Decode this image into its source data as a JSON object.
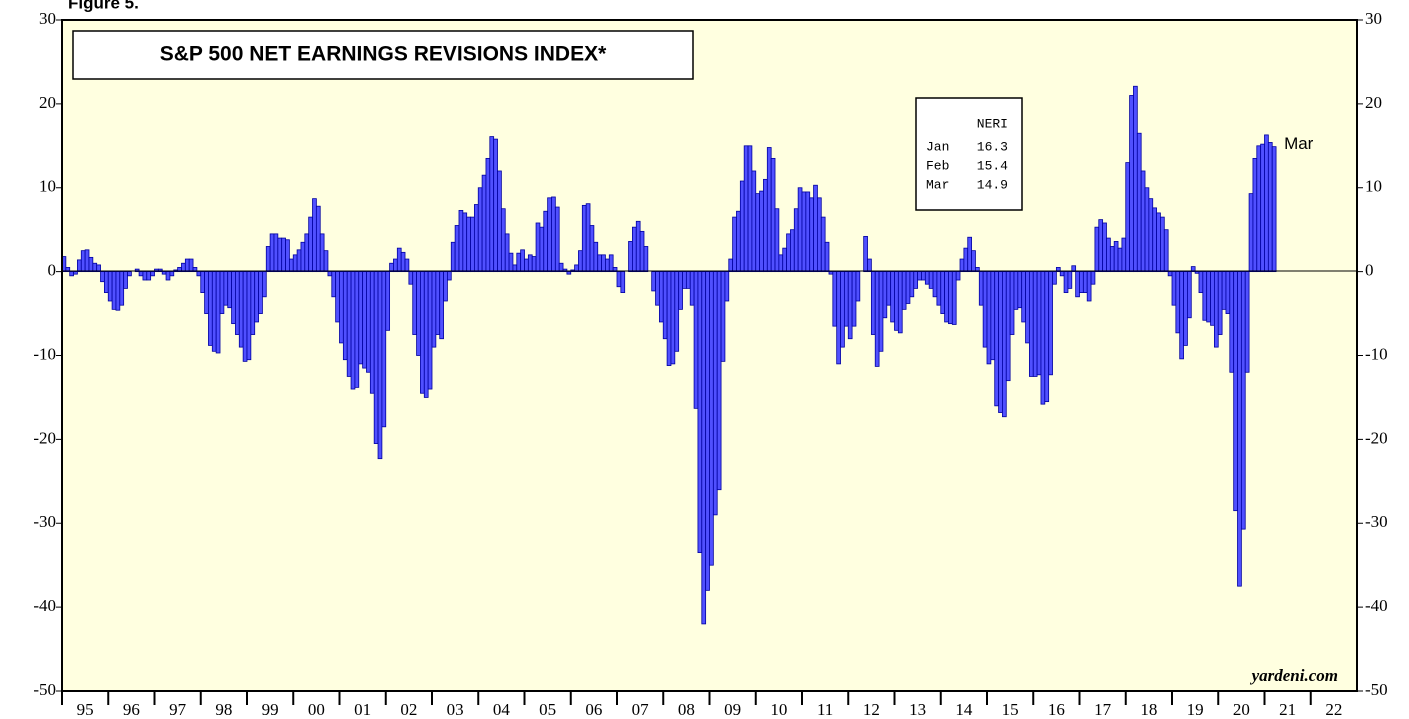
{
  "chart_data": {
    "type": "bar",
    "figure_label": "Figure 5.",
    "title": "S&P 500 NET EARNINGS REVISIONS INDEX*",
    "source": "yardeni.com",
    "end_label": "Mar",
    "table": {
      "header": "NERI",
      "rows": [
        [
          "Jan",
          "16.3"
        ],
        [
          "Feb",
          "15.4"
        ],
        [
          "Mar",
          "14.9"
        ]
      ]
    },
    "color": "#5050ff",
    "edge_color": "#0000a0",
    "background": "#ffffe0",
    "xlim": [
      1995,
      2023
    ],
    "ylim": [
      -50,
      30
    ],
    "yticks": [
      -50,
      -40,
      -30,
      -20,
      -10,
      0,
      10,
      20,
      30
    ],
    "xticks": [
      {
        "value": 1995,
        "label": "95"
      },
      {
        "value": 1996,
        "label": "96"
      },
      {
        "value": 1997,
        "label": "97"
      },
      {
        "value": 1998,
        "label": "98"
      },
      {
        "value": 1999,
        "label": "99"
      },
      {
        "value": 2000,
        "label": "00"
      },
      {
        "value": 2001,
        "label": "01"
      },
      {
        "value": 2002,
        "label": "02"
      },
      {
        "value": 2003,
        "label": "03"
      },
      {
        "value": 2004,
        "label": "04"
      },
      {
        "value": 2005,
        "label": "05"
      },
      {
        "value": 2006,
        "label": "06"
      },
      {
        "value": 2007,
        "label": "07"
      },
      {
        "value": 2008,
        "label": "08"
      },
      {
        "value": 2009,
        "label": "09"
      },
      {
        "value": 2010,
        "label": "10"
      },
      {
        "value": 2011,
        "label": "11"
      },
      {
        "value": 2012,
        "label": "12"
      },
      {
        "value": 2013,
        "label": "13"
      },
      {
        "value": 2014,
        "label": "14"
      },
      {
        "value": 2015,
        "label": "15"
      },
      {
        "value": 2016,
        "label": "16"
      },
      {
        "value": 2017,
        "label": "17"
      },
      {
        "value": 2018,
        "label": "18"
      },
      {
        "value": 2019,
        "label": "19"
      },
      {
        "value": 2020,
        "label": "20"
      },
      {
        "value": 2021,
        "label": "21"
      },
      {
        "value": 2022,
        "label": "22"
      }
    ],
    "x": [
      "1995-01",
      "1995-02",
      "1995-03",
      "1995-04",
      "1995-05",
      "1995-06",
      "1995-07",
      "1995-08",
      "1995-09",
      "1995-10",
      "1995-11",
      "1995-12",
      "1996-01",
      "1996-02",
      "1996-03",
      "1996-04",
      "1996-05",
      "1996-06",
      "1996-07",
      "1996-08",
      "1996-09",
      "1996-10",
      "1996-11",
      "1996-12",
      "1997-01",
      "1997-02",
      "1997-03",
      "1997-04",
      "1997-05",
      "1997-06",
      "1997-07",
      "1997-08",
      "1997-09",
      "1997-10",
      "1997-11",
      "1997-12",
      "1998-01",
      "1998-02",
      "1998-03",
      "1998-04",
      "1998-05",
      "1998-06",
      "1998-07",
      "1998-08",
      "1998-09",
      "1998-10",
      "1998-11",
      "1998-12",
      "1999-01",
      "1999-02",
      "1999-03",
      "1999-04",
      "1999-05",
      "1999-06",
      "1999-07",
      "1999-08",
      "1999-09",
      "1999-10",
      "1999-11",
      "1999-12",
      "2000-01",
      "2000-02",
      "2000-03",
      "2000-04",
      "2000-05",
      "2000-06",
      "2000-07",
      "2000-08",
      "2000-09",
      "2000-10",
      "2000-11",
      "2000-12",
      "2001-01",
      "2001-02",
      "2001-03",
      "2001-04",
      "2001-05",
      "2001-06",
      "2001-07",
      "2001-08",
      "2001-09",
      "2001-10",
      "2001-11",
      "2001-12",
      "2002-01",
      "2002-02",
      "2002-03",
      "2002-04",
      "2002-05",
      "2002-06",
      "2002-07",
      "2002-08",
      "2002-09",
      "2002-10",
      "2002-11",
      "2002-12",
      "2003-01",
      "2003-02",
      "2003-03",
      "2003-04",
      "2003-05",
      "2003-06",
      "2003-07",
      "2003-08",
      "2003-09",
      "2003-10",
      "2003-11",
      "2003-12",
      "2004-01",
      "2004-02",
      "2004-03",
      "2004-04",
      "2004-05",
      "2004-06",
      "2004-07",
      "2004-08",
      "2004-09",
      "2004-10",
      "2004-11",
      "2004-12",
      "2005-01",
      "2005-02",
      "2005-03",
      "2005-04",
      "2005-05",
      "2005-06",
      "2005-07",
      "2005-08",
      "2005-09",
      "2005-10",
      "2005-11",
      "2005-12",
      "2006-01",
      "2006-02",
      "2006-03",
      "2006-04",
      "2006-05",
      "2006-06",
      "2006-07",
      "2006-08",
      "2006-09",
      "2006-10",
      "2006-11",
      "2006-12",
      "2007-01",
      "2007-02",
      "2007-03",
      "2007-04",
      "2007-05",
      "2007-06",
      "2007-07",
      "2007-08",
      "2007-09",
      "2007-10",
      "2007-11",
      "2007-12",
      "2008-01",
      "2008-02",
      "2008-03",
      "2008-04",
      "2008-05",
      "2008-06",
      "2008-07",
      "2008-08",
      "2008-09",
      "2008-10",
      "2008-11",
      "2008-12",
      "2009-01",
      "2009-02",
      "2009-03",
      "2009-04",
      "2009-05",
      "2009-06",
      "2009-07",
      "2009-08",
      "2009-09",
      "2009-10",
      "2009-11",
      "2009-12",
      "2010-01",
      "2010-02",
      "2010-03",
      "2010-04",
      "2010-05",
      "2010-06",
      "2010-07",
      "2010-08",
      "2010-09",
      "2010-10",
      "2010-11",
      "2010-12",
      "2011-01",
      "2011-02",
      "2011-03",
      "2011-04",
      "2011-05",
      "2011-06",
      "2011-07",
      "2011-08",
      "2011-09",
      "2011-10",
      "2011-11",
      "2011-12",
      "2012-01",
      "2012-02",
      "2012-03",
      "2012-04",
      "2012-05",
      "2012-06",
      "2012-07",
      "2012-08",
      "2012-09",
      "2012-10",
      "2012-11",
      "2012-12",
      "2013-01",
      "2013-02",
      "2013-03",
      "2013-04",
      "2013-05",
      "2013-06",
      "2013-07",
      "2013-08",
      "2013-09",
      "2013-10",
      "2013-11",
      "2013-12",
      "2014-01",
      "2014-02",
      "2014-03",
      "2014-04",
      "2014-05",
      "2014-06",
      "2014-07",
      "2014-08",
      "2014-09",
      "2014-10",
      "2014-11",
      "2014-12",
      "2015-01",
      "2015-02",
      "2015-03",
      "2015-04",
      "2015-05",
      "2015-06",
      "2015-07",
      "2015-08",
      "2015-09",
      "2015-10",
      "2015-11",
      "2015-12",
      "2016-01",
      "2016-02",
      "2016-03",
      "2016-04",
      "2016-05",
      "2016-06",
      "2016-07",
      "2016-08",
      "2016-09",
      "2016-10",
      "2016-11",
      "2016-12",
      "2017-01",
      "2017-02",
      "2017-03",
      "2017-04",
      "2017-05",
      "2017-06",
      "2017-07",
      "2017-08",
      "2017-09",
      "2017-10",
      "2017-11",
      "2017-12",
      "2018-01",
      "2018-02",
      "2018-03",
      "2018-04",
      "2018-05",
      "2018-06",
      "2018-07",
      "2018-08",
      "2018-09",
      "2018-10",
      "2018-11",
      "2018-12",
      "2019-01",
      "2019-02",
      "2019-03",
      "2019-04",
      "2019-05",
      "2019-06",
      "2019-07",
      "2019-08",
      "2019-09",
      "2019-10",
      "2019-11",
      "2019-12",
      "2020-01",
      "2020-02",
      "2020-03",
      "2020-04",
      "2020-05",
      "2020-06",
      "2020-07",
      "2020-08",
      "2020-09",
      "2020-10",
      "2020-11",
      "2020-12",
      "2021-01",
      "2021-02",
      "2021-03"
    ],
    "values": [
      1.8,
      0.5,
      -0.5,
      -0.3,
      1.4,
      2.5,
      2.6,
      1.7,
      1.0,
      0.8,
      -1.2,
      -2.5,
      -3.5,
      -4.5,
      -4.6,
      -4.0,
      -2.0,
      -0.5,
      0,
      0.3,
      -0.5,
      -1.0,
      -1.0,
      -0.5,
      0.3,
      0.3,
      -0.3,
      -1.0,
      -0.5,
      0.2,
      0.5,
      1.0,
      1.5,
      1.5,
      0.5,
      -0.5,
      -2.5,
      -5,
      -8.8,
      -9.5,
      -9.7,
      -5,
      -4,
      -4.3,
      -6.2,
      -7.5,
      -9,
      -10.7,
      -10.5,
      -7.5,
      -6,
      -5,
      -3,
      3,
      4.5,
      4.5,
      4,
      4,
      3.8,
      1.5,
      2,
      2.6,
      3.5,
      4.5,
      6.5,
      8.7,
      7.8,
      4.5,
      2.5,
      -0.5,
      -3,
      -6,
      -8.5,
      -10.5,
      -12.5,
      -14,
      -13.8,
      -11,
      -11.5,
      -12,
      -14.5,
      -20.5,
      -22.3,
      -18.5,
      -7,
      1,
      1.5,
      2.8,
      2.3,
      1.5,
      -1.5,
      -7.5,
      -10,
      -14.5,
      -15,
      -14,
      -9,
      -7.5,
      -8,
      -3.5,
      -1,
      3.5,
      5.5,
      7.3,
      7,
      6.5,
      6.5,
      8,
      10,
      11.5,
      13.5,
      16.1,
      15.8,
      12,
      7.5,
      4.5,
      2.2,
      0.8,
      2.2,
      2.6,
      1.5,
      2,
      1.8,
      5.8,
      5.3,
      7.2,
      8.8,
      8.9,
      7.7,
      1.0,
      0.3,
      -0.3,
      0.2,
      0.8,
      2.5,
      7.9,
      8.1,
      5.5,
      3.5,
      2.0,
      2.0,
      1.5,
      2.0,
      0.5,
      -1.8,
      -2.5,
      0,
      3.6,
      5.3,
      6,
      4.8,
      3,
      0,
      -2.3,
      -4,
      -6,
      -8,
      -11.2,
      -11,
      -9.5,
      -4.5,
      -2,
      -2,
      -4,
      -16.3,
      -33.5,
      -42,
      -38,
      -35,
      -29,
      -26,
      -10.7,
      -3.5,
      1.5,
      6.5,
      7.2,
      10.8,
      15,
      15,
      12,
      9.3,
      9.6,
      11,
      14.8,
      13.5,
      7.5,
      2,
      2.8,
      4.5,
      5,
      7.5,
      10,
      9.5,
      9.5,
      8.8,
      10.3,
      8.8,
      6.5,
      3.5,
      -0.3,
      -6.5,
      -11,
      -9,
      -6.5,
      -8,
      -6.5,
      -3.5,
      0,
      4.2,
      1.5,
      -7.5,
      -11.3,
      -9.5,
      -5.5,
      -4,
      -6,
      -7,
      -7.3,
      -4.5,
      -3.8,
      -3,
      -2,
      -1,
      -1,
      -1.5,
      -2,
      -3,
      -4,
      -5,
      -6,
      -6.2,
      -6.3,
      -1,
      1.5,
      2.8,
      4.1,
      2.5,
      0.5,
      -4,
      -9,
      -11,
      -10.5,
      -16,
      -16.8,
      -17.3,
      -13,
      -7.5,
      -4.5,
      -4.3,
      -6,
      -8.5,
      -12.5,
      -12.5,
      -12.3,
      -15.8,
      -15.5,
      -12.3,
      -1.5,
      0.5,
      -0.5,
      -2.5,
      -2,
      0.7,
      -3,
      -2.5,
      -2.5,
      -3.5,
      -1.5,
      5.3,
      6.2,
      5.8,
      4,
      3,
      3.6,
      2.8,
      4,
      13,
      21,
      22.1,
      16.5,
      12,
      10,
      8.7,
      7.6,
      7,
      6.5,
      5,
      -0.5,
      -4,
      -7.3,
      -10.4,
      -8.8,
      -5.5,
      0.6,
      -0.2,
      -2.5,
      -5.8,
      -6,
      -6.4,
      -9,
      -7.5,
      -4.5,
      -5,
      -12,
      -28.5,
      -37.5,
      -30.7,
      -12,
      9.3,
      13.5,
      15,
      15.2,
      16.3,
      15.4,
      14.9
    ]
  }
}
